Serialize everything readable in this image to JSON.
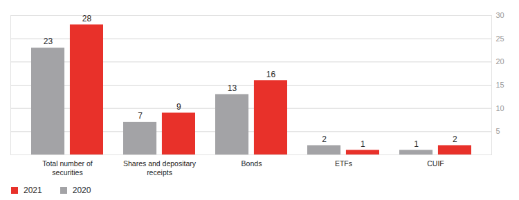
{
  "chart_data": {
    "type": "bar",
    "categories": [
      "Total number of securities",
      "Shares and depositary receipts",
      "Bonds",
      "ETFs",
      "CUIF"
    ],
    "series": [
      {
        "name": "2021",
        "color": "#e8312a",
        "values": [
          28,
          9,
          16,
          1,
          2
        ]
      },
      {
        "name": "2020",
        "color": "#a3a3a6",
        "values": [
          23,
          7,
          13,
          2,
          1
        ]
      }
    ],
    "ylim": [
      0,
      30
    ],
    "yticks": [
      5,
      10,
      15,
      20,
      25,
      30
    ],
    "grid": true,
    "data_labels": true,
    "legend": "lower left"
  }
}
